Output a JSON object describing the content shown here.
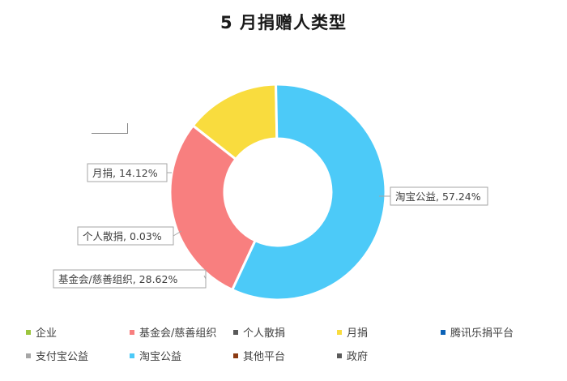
{
  "chart_data": {
    "type": "pie",
    "title": "5 月捐赠人类型",
    "donut": true,
    "legend_position": "bottom",
    "slices": [
      {
        "label": "企业",
        "value": 0,
        "color": "#9bc53d",
        "show_label": false
      },
      {
        "label": "基金会/慈善组织",
        "value": 28.62,
        "display": "基金会/慈善组织, 28.62%",
        "color": "#f87f7f",
        "show_label": true
      },
      {
        "label": "个人散捐",
        "value": 0.03,
        "display": "个人散捐, 0.03%",
        "color": "#595959",
        "show_label": true
      },
      {
        "label": "月捐",
        "value": 14.12,
        "display": "月捐, 14.12%",
        "color": "#f9dc3e",
        "show_label": true
      },
      {
        "label": "腾讯乐捐平台",
        "value": 0,
        "color": "#0b62b7",
        "show_label": false
      },
      {
        "label": "支付宝公益",
        "value": 0,
        "color": "#a6a6a6",
        "show_label": false
      },
      {
        "label": "淘宝公益",
        "value": 57.24,
        "display": "淘宝公益, 57.24%",
        "color": "#4ccaf8",
        "show_label": true
      },
      {
        "label": "其他平台",
        "value": 0,
        "color": "#8b3a12",
        "show_label": false
      },
      {
        "label": "政府",
        "value": 0,
        "color": "#5a5a5a",
        "show_label": false
      }
    ]
  }
}
